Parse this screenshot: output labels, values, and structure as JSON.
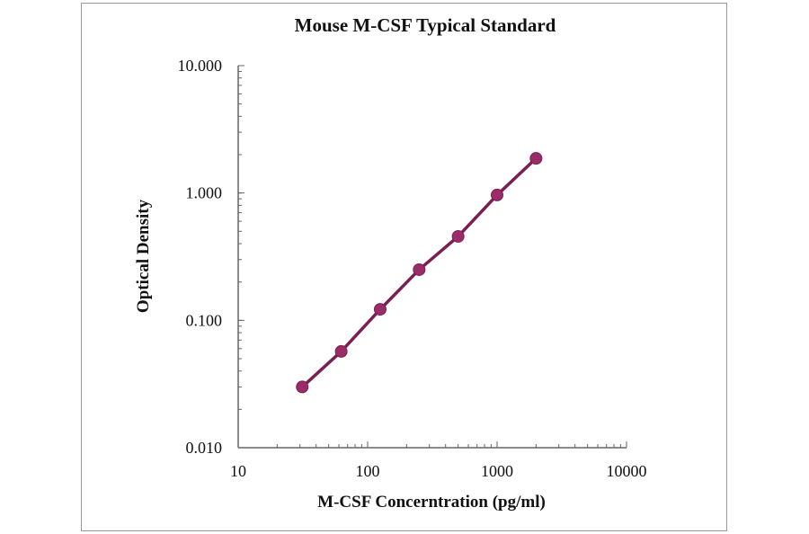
{
  "chart_data": {
    "type": "line",
    "title": "Mouse M-CSF Typical Standard",
    "xlabel": "M-CSF Concerntration (pg/ml)",
    "ylabel": "Optical Density",
    "x_scale": "log",
    "y_scale": "log",
    "xlim": [
      10,
      10000
    ],
    "ylim": [
      0.01,
      10
    ],
    "x_ticks": [
      "10",
      "100",
      "1000",
      "10000"
    ],
    "y_ticks": [
      "0.010",
      "0.100",
      "1.000",
      "10.000"
    ],
    "grid": false,
    "legend": "none",
    "series": [
      {
        "x": [
          31.25,
          62.5,
          125,
          250,
          500,
          1000,
          2000
        ],
        "y": [
          0.03,
          0.057,
          0.122,
          0.25,
          0.456,
          0.964,
          1.87
        ],
        "color": "#7a1f52",
        "marker_color": "#9a2d68"
      }
    ]
  }
}
